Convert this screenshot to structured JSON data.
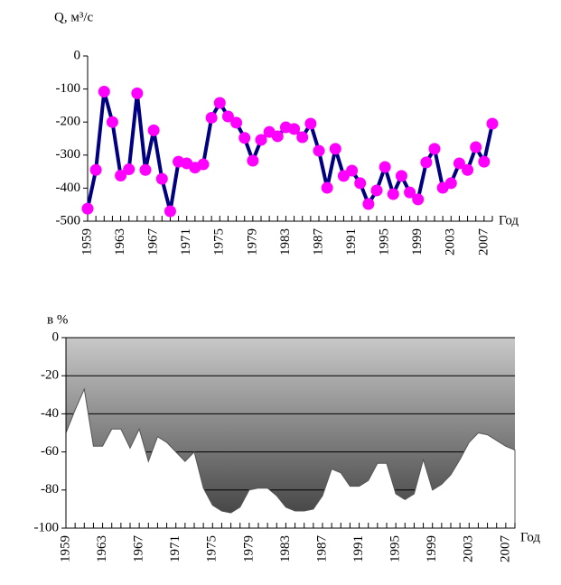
{
  "chart_data": [
    {
      "type": "line",
      "ylabel": "Q, м³/с",
      "xlabel": "Год",
      "x": [
        1959,
        1960,
        1961,
        1962,
        1963,
        1964,
        1965,
        1966,
        1967,
        1968,
        1969,
        1970,
        1971,
        1972,
        1973,
        1974,
        1975,
        1976,
        1977,
        1978,
        1979,
        1980,
        1981,
        1982,
        1983,
        1984,
        1985,
        1986,
        1987,
        1988,
        1989,
        1990,
        1991,
        1992,
        1993,
        1994,
        1995,
        1996,
        1997,
        1998,
        1999,
        2000,
        2001,
        2002,
        2003,
        2004,
        2005,
        2006,
        2007,
        2008
      ],
      "series": [
        {
          "color": "#000080",
          "marker_color": "#ff00ff",
          "values": [
            -462,
            -345,
            -108,
            -200,
            -362,
            -343,
            -113,
            -345,
            -225,
            -372,
            -470,
            -320,
            -325,
            -338,
            -328,
            -187,
            -142,
            -183,
            -202,
            -248,
            -317,
            -254,
            -230,
            -243,
            -216,
            -221,
            -246,
            -205,
            -287,
            -399,
            -281,
            -363,
            -347,
            -385,
            -448,
            -407,
            -336,
            -418,
            -363,
            -413,
            -434,
            -322,
            -281,
            -399,
            -385,
            -325,
            -345,
            -276,
            -320,
            -205
          ]
        }
      ],
      "xlim": [
        1959,
        2008
      ],
      "xticks": [
        1959,
        1963,
        1967,
        1971,
        1975,
        1979,
        1983,
        1987,
        1991,
        1995,
        1999,
        2003,
        2007
      ],
      "ylim": [
        -500,
        0
      ],
      "yticks": [
        0,
        -100,
        -200,
        -300,
        -400,
        -500
      ]
    },
    {
      "type": "area",
      "ylabel": "в %",
      "xlabel": "Год",
      "x": [
        1959,
        1960,
        1961,
        1962,
        1963,
        1964,
        1965,
        1966,
        1967,
        1968,
        1969,
        1970,
        1971,
        1972,
        1973,
        1974,
        1975,
        1976,
        1977,
        1978,
        1979,
        1980,
        1981,
        1982,
        1983,
        1984,
        1985,
        1986,
        1987,
        1988,
        1989,
        1990,
        1991,
        1992,
        1993,
        1994,
        1995,
        1996,
        1997,
        1998,
        1999,
        2000,
        2001,
        2002,
        2003,
        2004,
        2005,
        2006,
        2007,
        2008
      ],
      "series": [
        {
          "color": "#ffffff",
          "values": [
            -50,
            -38,
            -27,
            -57,
            -57,
            -48,
            -48,
            -58,
            -48,
            -65,
            -52,
            -55,
            -60,
            -65,
            -60,
            -79,
            -88,
            -91,
            -92,
            -89,
            -80,
            -79,
            -79,
            -83,
            -89,
            -91,
            -91,
            -90,
            -83,
            -69,
            -71,
            -78,
            -78,
            -75,
            -66,
            -66,
            -82,
            -85,
            -82,
            -64,
            -80,
            -77,
            -72,
            -64,
            -55,
            -50,
            -51,
            -54,
            -57,
            -59
          ]
        }
      ],
      "xlim": [
        1959,
        2008
      ],
      "xticks": [
        1959,
        1963,
        1967,
        1971,
        1975,
        1979,
        1983,
        1987,
        1991,
        1995,
        1999,
        2003,
        2007
      ],
      "ylim": [
        -100,
        0
      ],
      "yticks": [
        0,
        -20,
        -40,
        -60,
        -80,
        -100
      ],
      "grid": true
    }
  ]
}
